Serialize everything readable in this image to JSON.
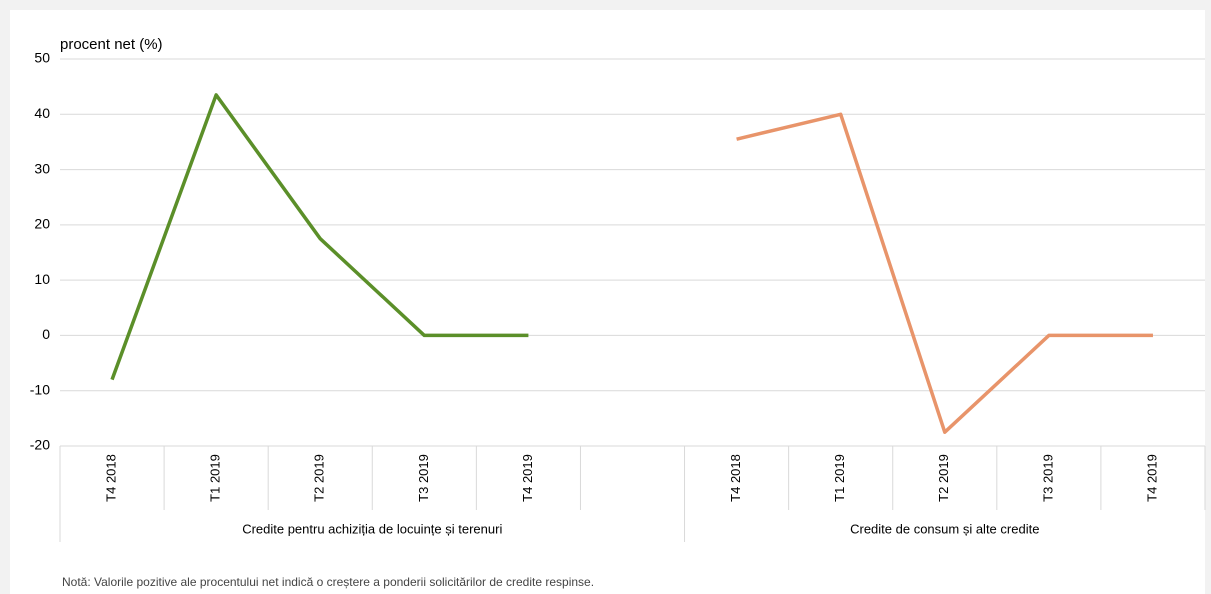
{
  "chart_data": {
    "type": "line",
    "y_label": "procent net (%)",
    "categories": [
      "T4 2018",
      "T1 2019",
      "T2 2019",
      "T3 2019",
      "T4 2019",
      null,
      "T4 2018",
      "T1 2019",
      "T2 2019",
      "T3 2019",
      "T4 2019"
    ],
    "group_labels": [
      "Credite pentru achiziția de locuințe și terenuri",
      "Credite de consum și alte credite"
    ],
    "series": [
      {
        "color": "#5b8f29",
        "values": [
          -8,
          43.5,
          17.5,
          0,
          0,
          null,
          null,
          null,
          null,
          null,
          null
        ]
      },
      {
        "color": "#e8946a",
        "values": [
          null,
          null,
          null,
          null,
          null,
          null,
          35.5,
          40,
          -17.5,
          0,
          0
        ]
      }
    ],
    "ylim": [
      -20,
      50
    ],
    "yticks": [
      -20,
      -10,
      0,
      10,
      20,
      30,
      40,
      50
    ],
    "grid": true,
    "note": "Notă: Valorile pozitive ale procentului net indică o creștere a ponderii solicitărilor de credite respinse."
  }
}
